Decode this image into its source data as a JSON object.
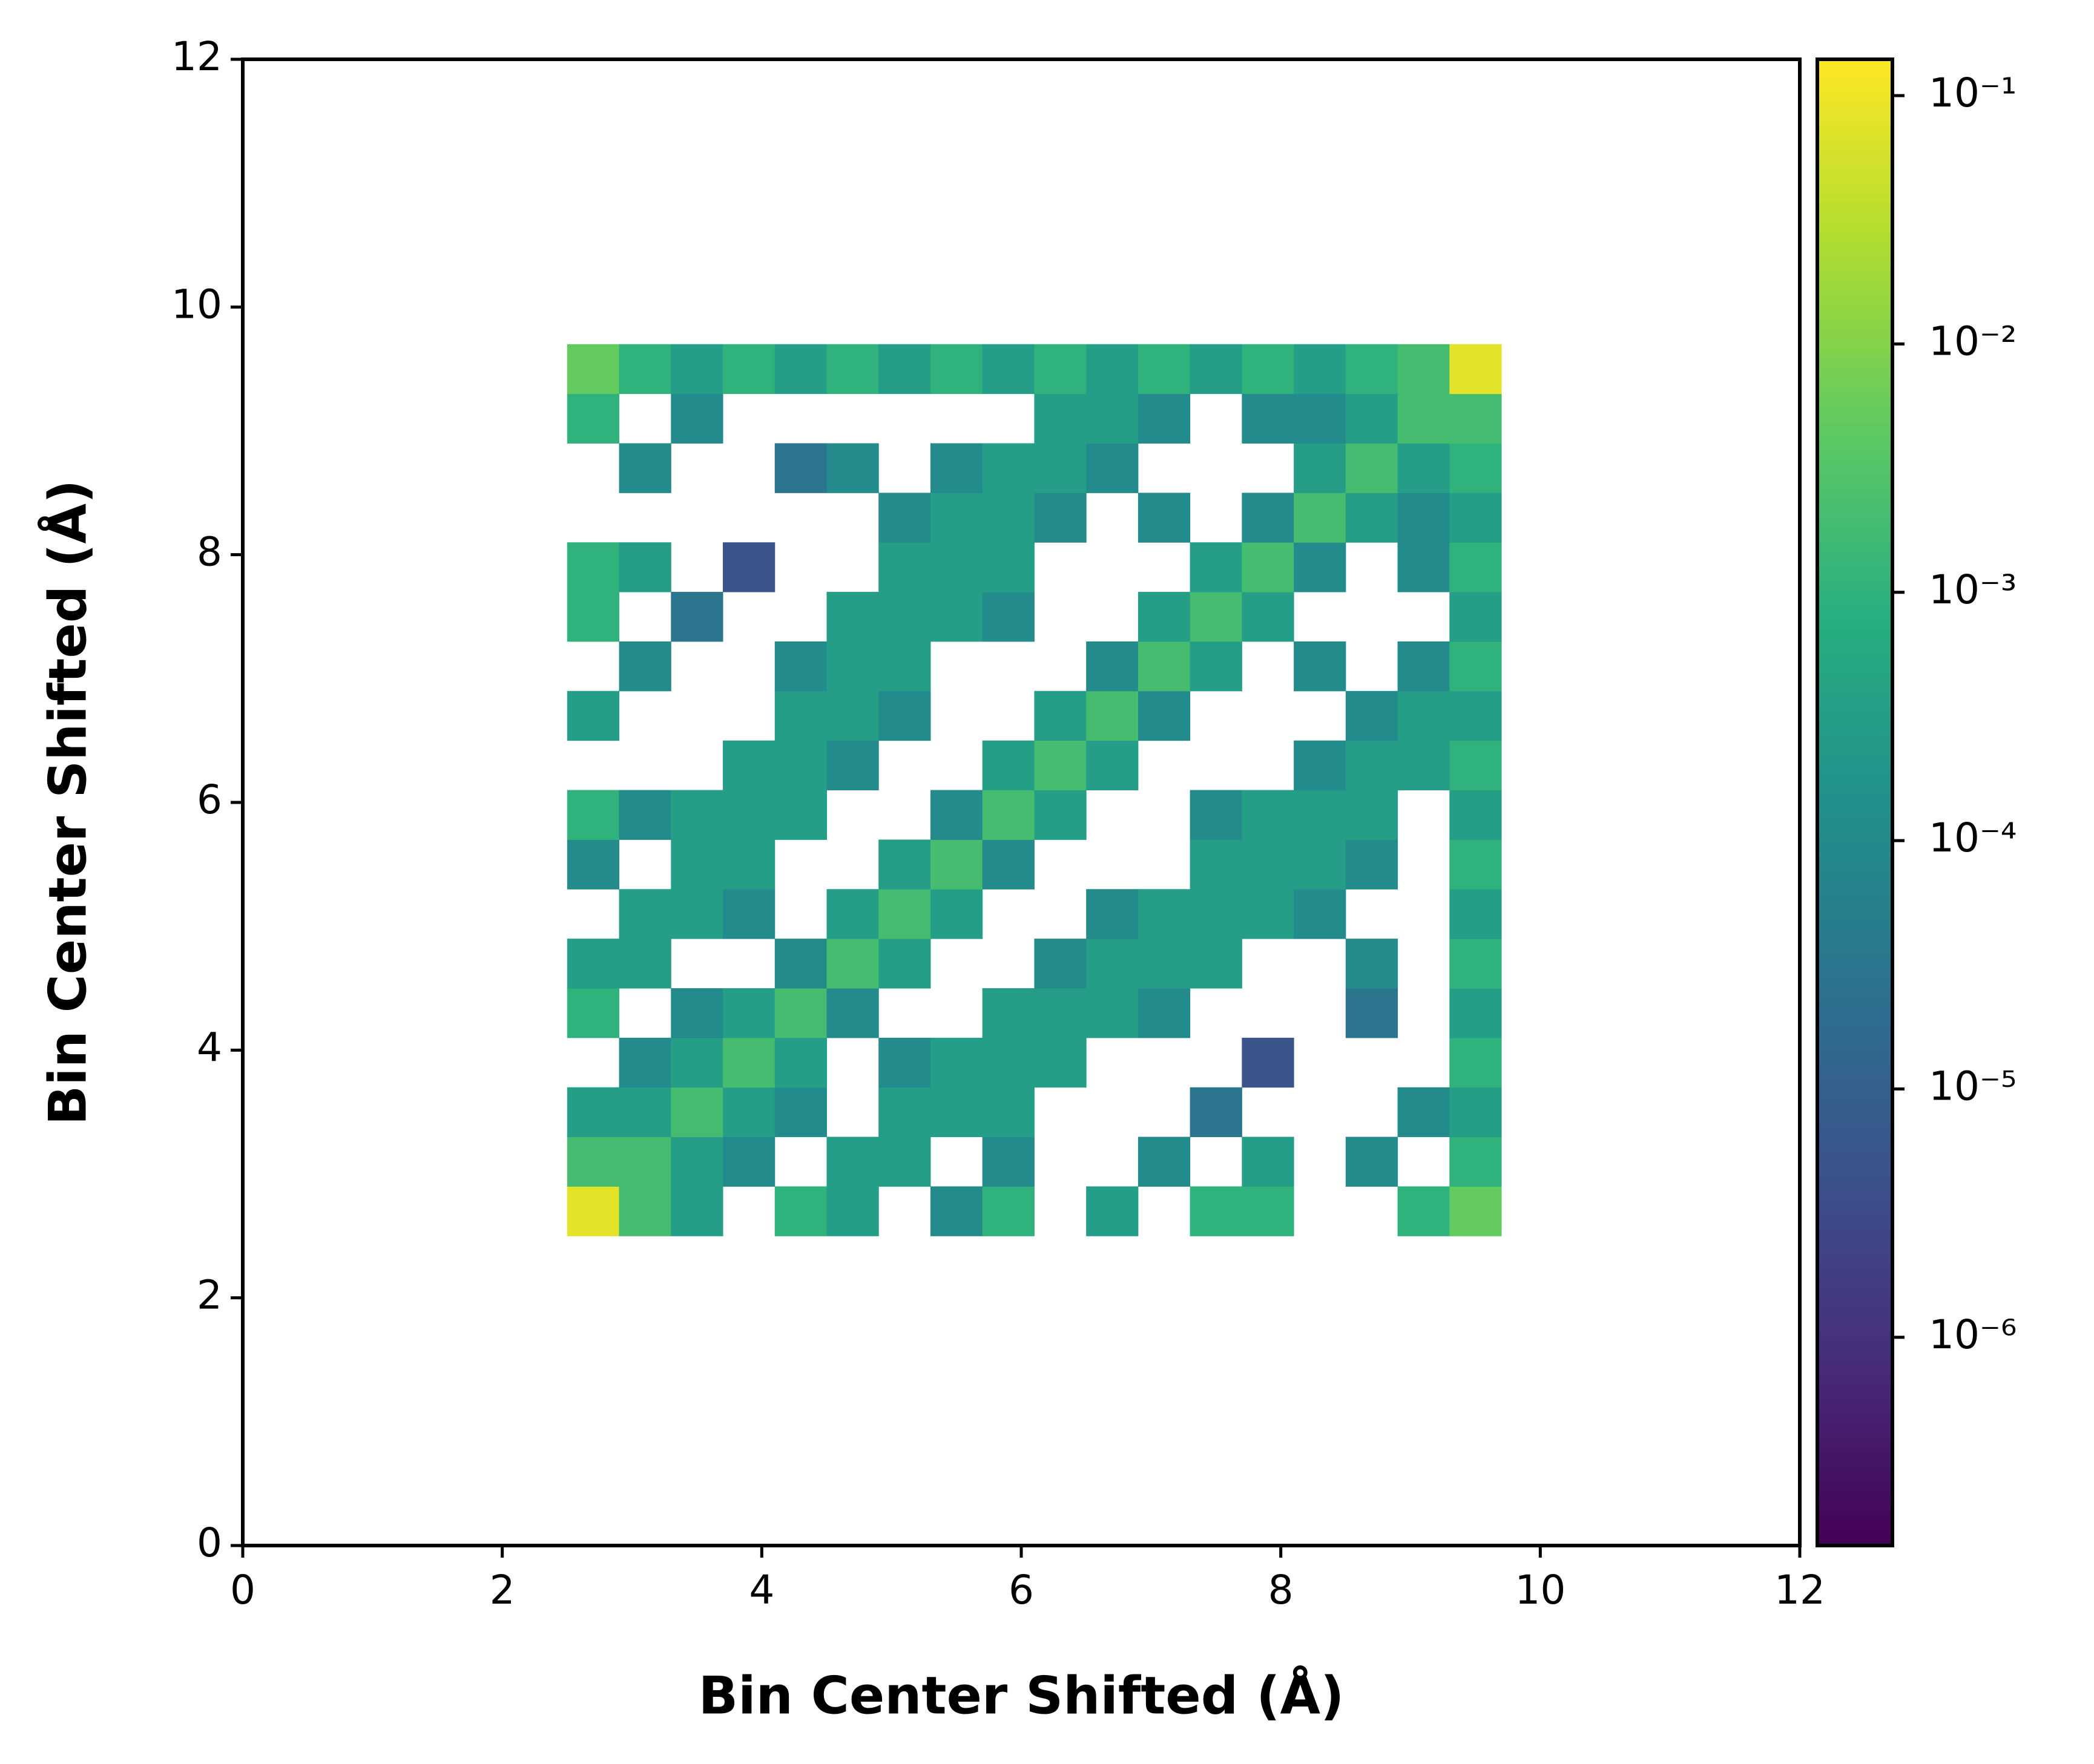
{
  "chart_data": {
    "type": "heatmap",
    "x_label": "Bin Center Shifted (Å)",
    "y_label": "Bin Center Shifted (Å)",
    "xlim": [
      0,
      12
    ],
    "ylim": [
      0,
      12
    ],
    "xticks": [
      0,
      2,
      4,
      6,
      8,
      10,
      12
    ],
    "yticks": [
      0,
      2,
      4,
      6,
      8,
      10,
      12
    ],
    "xbins": [
      2.5,
      2.9,
      3.3,
      3.7,
      4.1,
      4.5,
      4.9,
      5.3,
      5.7,
      6.1,
      6.5,
      6.9,
      7.3,
      7.7,
      8.1,
      8.5,
      8.9,
      9.3,
      9.7
    ],
    "ybins": [
      2.5,
      2.9,
      3.3,
      3.7,
      4.1,
      4.5,
      4.9,
      5.3,
      5.7,
      6.1,
      6.5,
      6.9,
      7.3,
      7.7,
      8.1,
      8.5,
      8.9,
      9.3,
      9.7
    ],
    "values": [
      [
        0.08,
        0.002,
        0.0003,
        null,
        0.001,
        0.0003,
        null,
        0.0001,
        0.001,
        null,
        0.0003,
        null,
        0.001,
        0.001,
        null,
        null,
        0.001,
        0.005
      ],
      [
        0.002,
        0.002,
        0.0003,
        0.0001,
        null,
        0.0003,
        0.0003,
        null,
        0.0001,
        null,
        null,
        0.0001,
        null,
        0.0003,
        null,
        0.0001,
        null,
        0.001
      ],
      [
        0.0003,
        0.0003,
        0.002,
        0.0003,
        0.0001,
        null,
        0.0003,
        0.0003,
        0.0003,
        null,
        null,
        null,
        3e-05,
        null,
        null,
        null,
        0.0001,
        0.0003
      ],
      [
        null,
        0.0001,
        0.0003,
        0.002,
        0.0003,
        null,
        0.0001,
        0.0003,
        0.0003,
        0.0003,
        null,
        null,
        null,
        5e-06,
        null,
        null,
        null,
        0.001
      ],
      [
        0.001,
        null,
        0.0001,
        0.0003,
        0.002,
        0.0001,
        null,
        null,
        0.0003,
        0.0003,
        0.0003,
        0.0001,
        null,
        null,
        null,
        3e-05,
        null,
        0.0003
      ],
      [
        0.0003,
        0.0003,
        null,
        null,
        0.0001,
        0.002,
        0.0003,
        null,
        null,
        0.0001,
        0.0003,
        0.0003,
        0.0003,
        null,
        null,
        0.0001,
        null,
        0.001
      ],
      [
        null,
        0.0003,
        0.0003,
        0.0001,
        null,
        0.0003,
        0.002,
        0.0003,
        null,
        null,
        0.0001,
        0.0003,
        0.0003,
        0.0003,
        0.0001,
        null,
        null,
        0.0003
      ],
      [
        0.0001,
        null,
        0.0003,
        0.0003,
        null,
        null,
        0.0003,
        0.002,
        0.0001,
        null,
        null,
        null,
        0.0003,
        0.0003,
        0.0003,
        0.0001,
        null,
        0.001
      ],
      [
        0.001,
        0.0001,
        0.0003,
        0.0003,
        0.0003,
        null,
        null,
        0.0001,
        0.002,
        0.0003,
        null,
        null,
        0.0001,
        0.0003,
        0.0003,
        0.0003,
        null,
        0.0003
      ],
      [
        null,
        null,
        null,
        0.0003,
        0.0003,
        0.0001,
        null,
        null,
        0.0003,
        0.002,
        0.0003,
        null,
        null,
        null,
        0.0001,
        0.0003,
        0.0003,
        0.001
      ],
      [
        0.0003,
        null,
        null,
        null,
        0.0003,
        0.0003,
        0.0001,
        null,
        null,
        0.0003,
        0.002,
        0.0001,
        null,
        null,
        null,
        0.0001,
        0.0003,
        0.0003
      ],
      [
        null,
        0.0001,
        null,
        null,
        0.0001,
        0.0003,
        0.0003,
        null,
        null,
        null,
        0.0001,
        0.002,
        0.0003,
        null,
        0.0001,
        null,
        0.0001,
        0.001
      ],
      [
        0.001,
        null,
        3e-05,
        null,
        null,
        0.0003,
        0.0003,
        0.0003,
        0.0001,
        null,
        null,
        0.0003,
        0.002,
        0.0003,
        null,
        null,
        null,
        0.0003
      ],
      [
        0.001,
        0.0003,
        null,
        5e-06,
        null,
        null,
        0.0003,
        0.0003,
        0.0003,
        null,
        null,
        null,
        0.0003,
        0.002,
        0.0001,
        null,
        0.0001,
        0.001
      ],
      [
        null,
        null,
        null,
        null,
        null,
        null,
        0.0001,
        0.0003,
        0.0003,
        0.0001,
        null,
        0.0001,
        null,
        0.0001,
        0.002,
        0.0003,
        0.0001,
        0.0003
      ],
      [
        null,
        0.0001,
        null,
        null,
        3e-05,
        0.0001,
        null,
        0.0001,
        0.0003,
        0.0003,
        0.0001,
        null,
        null,
        null,
        0.0003,
        0.002,
        0.0003,
        0.001
      ],
      [
        0.001,
        null,
        0.0001,
        null,
        null,
        null,
        null,
        null,
        null,
        0.0003,
        0.0003,
        0.0001,
        null,
        0.0001,
        0.0001,
        0.0003,
        0.002,
        0.002
      ],
      [
        0.005,
        0.001,
        0.0003,
        0.001,
        0.0003,
        0.001,
        0.0003,
        0.001,
        0.0003,
        0.001,
        0.0003,
        0.001,
        0.0003,
        0.001,
        0.0003,
        0.001,
        0.002,
        0.08
      ]
    ],
    "color_scale": "log",
    "clim": [
      1.45e-07,
      0.14
    ],
    "colormap": [
      "#440154",
      "#472d7b",
      "#3b528b",
      "#2c728e",
      "#21918c",
      "#28ae80",
      "#5ec962",
      "#addc30",
      "#fde725"
    ],
    "cticks": [
      {
        "value": 1e-06,
        "label": "10⁻⁶"
      },
      {
        "value": 1e-05,
        "label": "10⁻⁵"
      },
      {
        "value": 0.0001,
        "label": "10⁻⁴"
      },
      {
        "value": 0.001,
        "label": "10⁻³"
      },
      {
        "value": 0.01,
        "label": "10⁻²"
      },
      {
        "value": 0.1,
        "label": "10⁻¹"
      }
    ]
  }
}
